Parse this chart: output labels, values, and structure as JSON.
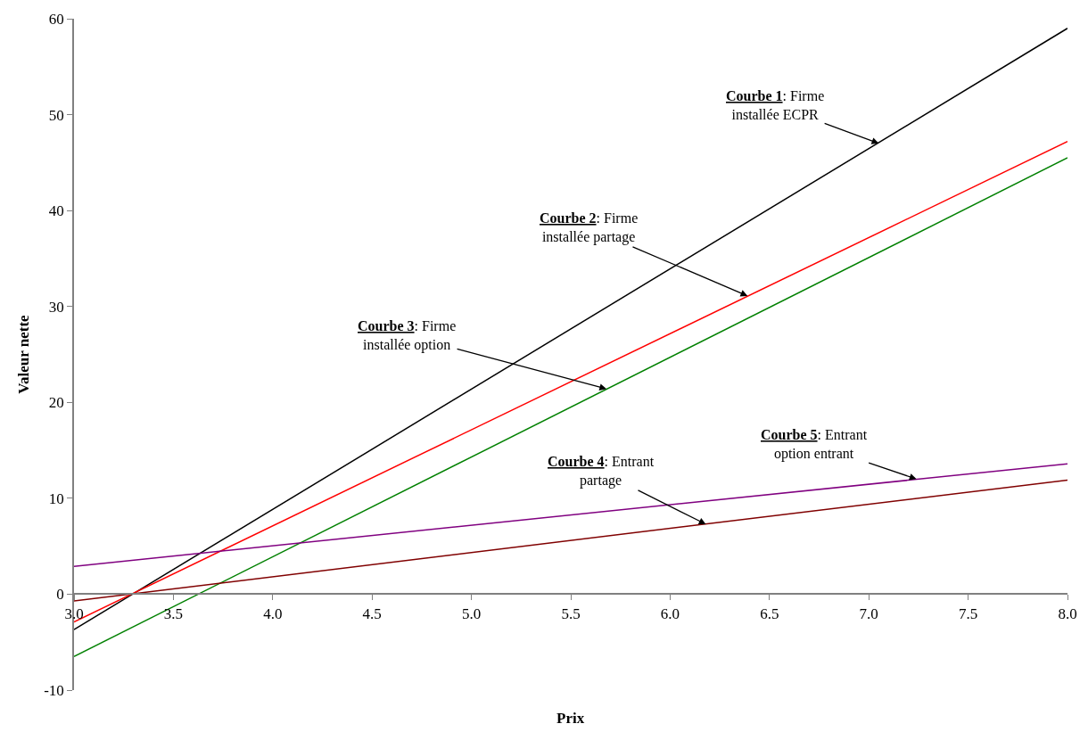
{
  "chart_data": {
    "type": "line",
    "xlabel": "Prix",
    "ylabel": "Valeur nette",
    "x": [
      3,
      8
    ],
    "series": [
      {
        "color": "#000000",
        "values": [
          -3.7,
          59.0
        ]
      },
      {
        "color": "#ff0000",
        "values": [
          -2.9,
          47.2
        ]
      },
      {
        "color": "#008000",
        "values": [
          -6.5,
          45.5
        ]
      },
      {
        "color": "#800080",
        "values": [
          2.9,
          13.6
        ]
      },
      {
        "color": "#800000",
        "values": [
          -0.7,
          11.9
        ]
      }
    ],
    "xlim": [
      3,
      8
    ],
    "ylim": [
      -10,
      60
    ],
    "xticks": [
      {
        "value": 3,
        "label": "3.0"
      },
      {
        "value": 3.5,
        "label": "3.5"
      },
      {
        "value": 4,
        "label": "4.0"
      },
      {
        "value": 4.5,
        "label": "4.5"
      },
      {
        "value": 5,
        "label": "5.0"
      },
      {
        "value": 5.5,
        "label": "5.5"
      },
      {
        "value": 6,
        "label": "6.0"
      },
      {
        "value": 6.5,
        "label": "6.5"
      },
      {
        "value": 7,
        "label": "7.0"
      },
      {
        "value": 7.5,
        "label": "7.5"
      },
      {
        "value": 8,
        "label": "8.0"
      }
    ],
    "yticks": [
      -10,
      0,
      10,
      20,
      30,
      40,
      50,
      60
    ],
    "marker": "none",
    "line_style": "solid",
    "annotations": [
      {
        "text": "Courbe 1: Firme\ninstallée ECPR",
        "x": 7.05,
        "y": 47
      },
      {
        "text": "Courbe 2: Firme\ninstallée partage",
        "x": 6.39,
        "y": 31.1
      },
      {
        "text": "Courbe 3: Firme\ninstallée option",
        "x": 5.68,
        "y": 21.4
      },
      {
        "text": "Courbe 4: Entrant\npartage",
        "x": 6.18,
        "y": 7.3
      },
      {
        "text": "Courbe 5: Entrant\noption entrant",
        "x": 7.24,
        "y": 12.0
      }
    ]
  }
}
